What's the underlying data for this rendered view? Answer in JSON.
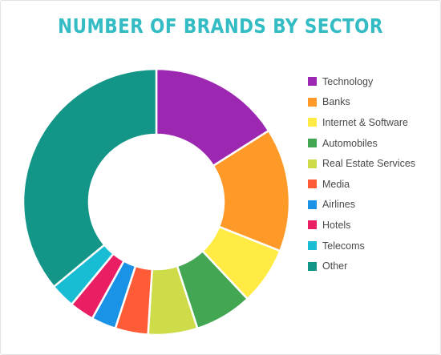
{
  "chart_data": {
    "type": "pie",
    "variant": "donut",
    "title": "NUMBER OF BRANDS BY SECTOR",
    "legend_position": "right",
    "categories": [
      "Technology",
      "Banks",
      "Internet & Software",
      "Automobiles",
      "Real Estate Services",
      "Media",
      "Airlines",
      "Hotels",
      "Telecoms",
      "Other"
    ],
    "values": [
      16,
      15,
      7,
      7,
      6,
      4,
      3,
      3,
      3,
      36
    ],
    "colors": [
      "#9c27b0",
      "#ff9a28",
      "#ffeb44",
      "#43a652",
      "#cddc48",
      "#ff5b36",
      "#1a92e6",
      "#ea1f63",
      "#19bdd3",
      "#139587"
    ]
  }
}
